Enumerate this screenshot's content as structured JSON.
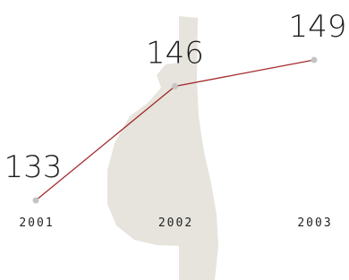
{
  "chart_data": {
    "type": "line",
    "categories": [
      "2001",
      "2002",
      "2003"
    ],
    "series": [
      {
        "values": [
          133,
          146,
          149
        ],
        "color": "#a3292b"
      }
    ]
  }
}
